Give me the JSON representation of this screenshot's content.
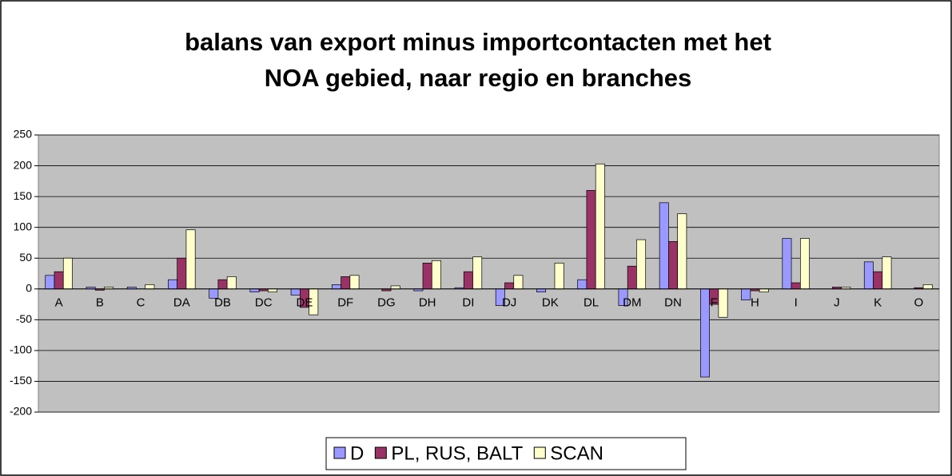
{
  "chart_data": {
    "type": "bar",
    "title_lines": [
      "balans van export minus importcontacten met het",
      "NOA gebied, naar regio en branches"
    ],
    "categories": [
      "A",
      "B",
      "C",
      "DA",
      "DB",
      "DC",
      "DE",
      "DF",
      "DG",
      "DH",
      "DI",
      "DJ",
      "DK",
      "DL",
      "DM",
      "DN",
      "F",
      "H",
      "I",
      "J",
      "K",
      "O"
    ],
    "series": [
      {
        "name": "D",
        "color": "#9999ff",
        "values": [
          22,
          3,
          3,
          15,
          -15,
          -5,
          -10,
          7,
          0,
          -3,
          2,
          -27,
          -5,
          15,
          -27,
          140,
          -143,
          -18,
          82,
          0,
          44,
          0
        ]
      },
      {
        "name": "PL, RUS, BALT",
        "color": "#993366",
        "values": [
          28,
          -2,
          0,
          50,
          15,
          -3,
          -30,
          20,
          -3,
          42,
          28,
          10,
          0,
          160,
          37,
          77,
          -25,
          -3,
          10,
          3,
          28,
          2
        ]
      },
      {
        "name": "SCAN",
        "color": "#ffffcc",
        "values": [
          50,
          3,
          7,
          96,
          20,
          -5,
          -42,
          22,
          5,
          46,
          52,
          22,
          42,
          203,
          80,
          122,
          -46,
          -5,
          82,
          3,
          52,
          7
        ]
      }
    ],
    "ylim": [
      -200,
      250
    ],
    "yticks": [
      -200,
      -150,
      -100,
      -50,
      0,
      50,
      100,
      150,
      200,
      250
    ],
    "grid": true,
    "plot_background": "#c0c0c0",
    "legend": "bottom"
  }
}
